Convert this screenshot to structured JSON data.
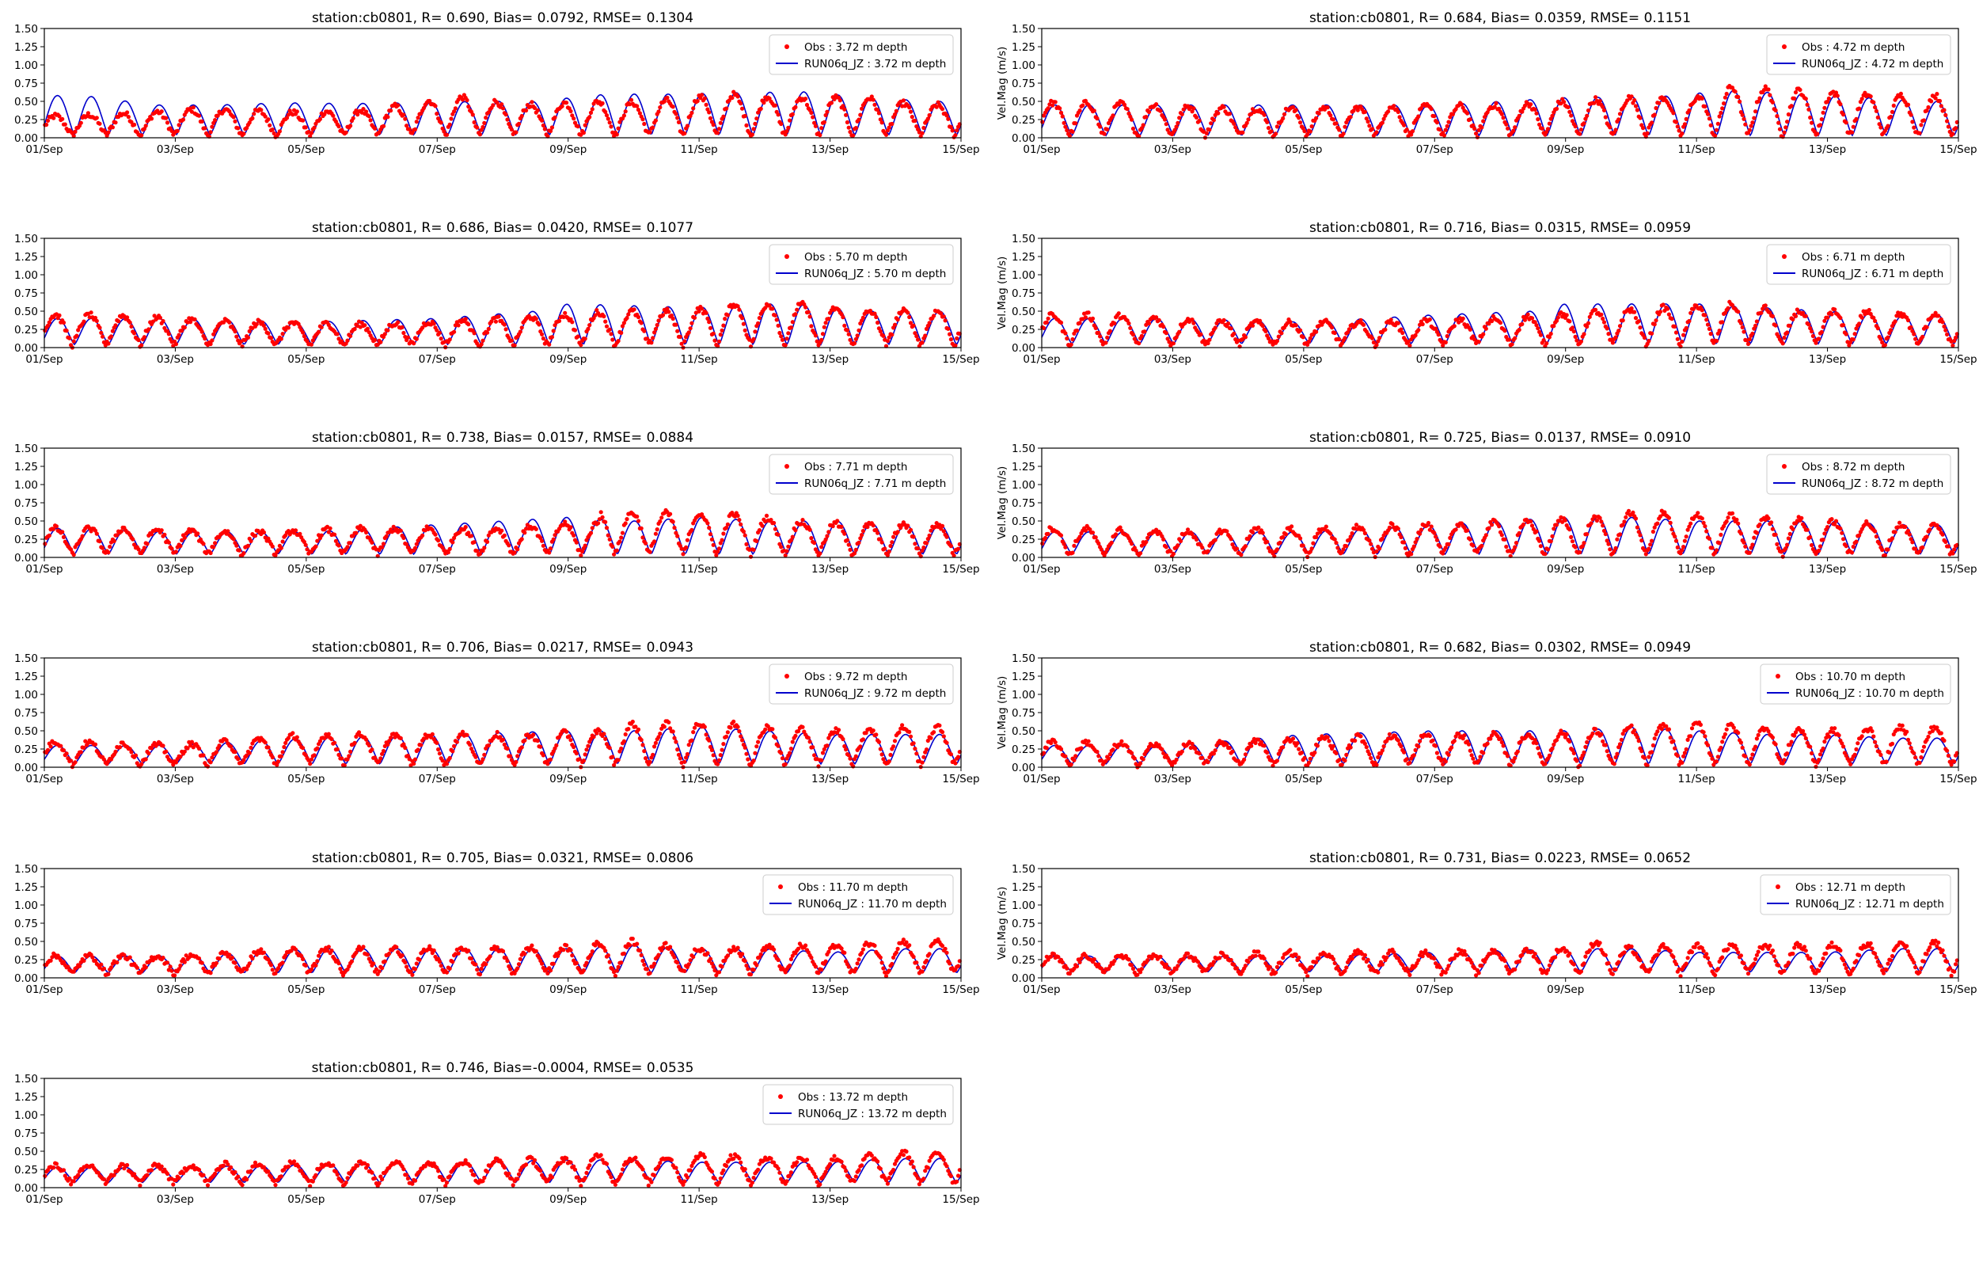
{
  "figure": {
    "x_ticks": [
      "01/Sep",
      "03/Sep",
      "05/Sep",
      "07/Sep",
      "09/Sep",
      "11/Sep",
      "13/Sep",
      "15/Sep"
    ],
    "y_ticks": [
      "0.00",
      "0.25",
      "0.50",
      "0.75",
      "1.00",
      "1.25",
      "1.50"
    ],
    "colors": {
      "obs": "#ff0000",
      "model": "#0000cc",
      "axis": "#000000"
    }
  },
  "chart_data": [
    {
      "type": "line",
      "title": "station:cb0801, R= 0.690, Bias= 0.0792, RMSE= 0.1304",
      "xlabel": "",
      "ylabel": "",
      "xlim": [
        0,
        14
      ],
      "ylim": [
        0,
        1.5
      ],
      "grid": false,
      "legend_position": "upper right",
      "series": [
        {
          "name": "Obs : 3.72 m depth",
          "marker": "dot",
          "color": "#ff0000",
          "mean": 0.19,
          "amp": 0.14,
          "peak_days": [
            0.3,
            1.6,
            2.4,
            3.8,
            5.0,
            6.3,
            7.3,
            8.4,
            9.1,
            10.4,
            11.3,
            12.6,
            13.3
          ],
          "peak_values": [
            0.3,
            0.35,
            0.4,
            0.35,
            0.38,
            0.57,
            0.45,
            0.5,
            0.48,
            0.6,
            0.55,
            0.55,
            0.45
          ]
        },
        {
          "name": "RUN06q_JZ : 3.72 m depth",
          "marker": "line",
          "color": "#0000cc",
          "mean": 0.26,
          "amp": 0.2,
          "peak_days": [
            0.6,
            1.7,
            2.6,
            3.7,
            4.7,
            5.6,
            6.6,
            7.5,
            8.6,
            9.6,
            10.6,
            11.6,
            12.6,
            13.6
          ],
          "peak_values": [
            0.58,
            0.45,
            0.45,
            0.48,
            0.47,
            0.48,
            0.5,
            0.5,
            0.6,
            0.6,
            0.62,
            0.63,
            0.55,
            0.5
          ]
        }
      ]
    },
    {
      "type": "line",
      "title": "station:cb0801, R= 0.684, Bias= 0.0359, RMSE= 0.1151",
      "xlabel": "",
      "ylabel": "Vel.Mag (m/s)",
      "xlim": [
        0,
        14
      ],
      "ylim": [
        0,
        1.5
      ],
      "grid": false,
      "legend_position": "upper right",
      "series": [
        {
          "name": "Obs : 4.72 m depth",
          "marker": "dot",
          "color": "#ff0000",
          "mean": 0.22,
          "amp": 0.17,
          "peak_days": [
            1.0,
            3.0,
            5.0,
            7.0,
            9.0,
            10.0,
            10.5,
            11.6,
            12.4,
            13.2
          ],
          "peak_values": [
            0.48,
            0.4,
            0.42,
            0.45,
            0.55,
            0.55,
            0.7,
            0.65,
            0.6,
            0.58
          ]
        },
        {
          "name": "RUN06q_JZ : 4.72 m depth",
          "marker": "line",
          "color": "#0000cc",
          "mean": 0.25,
          "amp": 0.2,
          "peak_days": [
            0.5,
            2.0,
            4.0,
            6.0,
            8.0,
            9.5,
            10.5,
            11.6,
            12.6,
            13.6
          ],
          "peak_values": [
            0.45,
            0.45,
            0.45,
            0.45,
            0.55,
            0.57,
            0.65,
            0.6,
            0.55,
            0.5
          ]
        }
      ]
    },
    {
      "type": "line",
      "title": "station:cb0801, R= 0.686, Bias= 0.0420, RMSE= 0.1077",
      "xlabel": "",
      "ylabel": "",
      "xlim": [
        0,
        14
      ],
      "ylim": [
        0,
        1.5
      ],
      "grid": false,
      "legend_position": "upper right",
      "series": [
        {
          "name": "Obs : 5.70 m depth",
          "marker": "dot",
          "color": "#ff0000",
          "mean": 0.2,
          "amp": 0.15,
          "peak_days": [
            1.0,
            3.0,
            5.0,
            7.0,
            8.7,
            9.8,
            10.5,
            11.5,
            12.5,
            13.4
          ],
          "peak_values": [
            0.45,
            0.35,
            0.32,
            0.4,
            0.5,
            0.5,
            0.6,
            0.6,
            0.5,
            0.5
          ]
        },
        {
          "name": "RUN06q_JZ : 5.70 m depth",
          "marker": "line",
          "color": "#0000cc",
          "mean": 0.24,
          "amp": 0.18,
          "peak_days": [
            0.5,
            2.0,
            4.0,
            6.0,
            7.5,
            8.0,
            10.0,
            11.0,
            11.5,
            12.5
          ],
          "peak_values": [
            0.4,
            0.4,
            0.35,
            0.4,
            0.5,
            0.6,
            0.55,
            0.6,
            0.6,
            0.5
          ]
        }
      ]
    },
    {
      "type": "line",
      "title": "station:cb0801, R= 0.716, Bias= 0.0315, RMSE= 0.0959",
      "xlabel": "",
      "ylabel": "Vel.Mag (m/s)",
      "xlim": [
        0,
        14
      ],
      "ylim": [
        0,
        1.5
      ],
      "grid": false,
      "legend_position": "upper right",
      "series": [
        {
          "name": "Obs : 6.71 m depth",
          "marker": "dot",
          "color": "#ff0000",
          "mean": 0.21,
          "amp": 0.15,
          "peak_days": [
            1.0,
            3.0,
            5.0,
            7.0,
            8.5,
            9.5,
            10.5,
            11.5,
            12.5,
            13.3
          ],
          "peak_values": [
            0.45,
            0.35,
            0.35,
            0.4,
            0.5,
            0.55,
            0.6,
            0.5,
            0.5,
            0.45
          ]
        },
        {
          "name": "RUN06q_JZ : 6.71 m depth",
          "marker": "line",
          "color": "#0000cc",
          "mean": 0.24,
          "amp": 0.17,
          "peak_days": [
            0.5,
            2.0,
            4.0,
            6.0,
            7.5,
            8.0,
            10.0,
            11.0,
            12.0,
            13.0
          ],
          "peak_values": [
            0.4,
            0.4,
            0.35,
            0.45,
            0.5,
            0.6,
            0.6,
            0.55,
            0.5,
            0.45
          ]
        }
      ]
    },
    {
      "type": "line",
      "title": "station:cb0801, R= 0.738, Bias= 0.0157, RMSE= 0.0884",
      "xlabel": "",
      "ylabel": "",
      "xlim": [
        0,
        14
      ],
      "ylim": [
        0,
        1.5
      ],
      "grid": false,
      "legend_position": "upper right",
      "series": [
        {
          "name": "Obs : 7.71 m depth",
          "marker": "dot",
          "color": "#ff0000",
          "mean": 0.2,
          "amp": 0.14,
          "peak_days": [
            1.0,
            3.0,
            5.0,
            7.0,
            8.5,
            8.5,
            10.5,
            11.5,
            12.5,
            13.5
          ],
          "peak_values": [
            0.4,
            0.35,
            0.4,
            0.4,
            0.5,
            0.62,
            0.6,
            0.5,
            0.45,
            0.45
          ]
        },
        {
          "name": "RUN06q_JZ : 7.71 m depth",
          "marker": "line",
          "color": "#0000cc",
          "mean": 0.22,
          "amp": 0.16,
          "peak_days": [
            0.5,
            2.0,
            4.0,
            6.0,
            8.0,
            9.0,
            10.0,
            11.0,
            12.0,
            13.0
          ],
          "peak_values": [
            0.4,
            0.35,
            0.35,
            0.45,
            0.55,
            0.5,
            0.55,
            0.5,
            0.5,
            0.45
          ]
        }
      ]
    },
    {
      "type": "line",
      "title": "station:cb0801, R= 0.725, Bias= 0.0137, RMSE= 0.0910",
      "xlabel": "",
      "ylabel": "Vel.Mag (m/s)",
      "xlim": [
        0,
        14
      ],
      "ylim": [
        0,
        1.5
      ],
      "grid": false,
      "legend_position": "upper right",
      "series": [
        {
          "name": "Obs : 8.72 m depth",
          "marker": "dot",
          "color": "#ff0000",
          "mean": 0.19,
          "amp": 0.14,
          "peak_days": [
            0.5,
            2.0,
            4.0,
            6.0,
            7.5,
            8.5,
            9.0,
            10.0,
            12.0,
            13.0
          ],
          "peak_values": [
            0.4,
            0.35,
            0.4,
            0.45,
            0.5,
            0.55,
            0.62,
            0.6,
            0.5,
            0.45
          ]
        },
        {
          "name": "RUN06q_JZ : 8.72 m depth",
          "marker": "line",
          "color": "#0000cc",
          "mean": 0.22,
          "amp": 0.16,
          "peak_days": [
            0.5,
            2.0,
            4.0,
            6.0,
            8.0,
            9.0,
            10.0,
            11.0,
            12.0,
            13.0
          ],
          "peak_values": [
            0.35,
            0.35,
            0.35,
            0.45,
            0.55,
            0.55,
            0.5,
            0.5,
            0.5,
            0.45
          ]
        }
      ]
    },
    {
      "type": "line",
      "title": "station:cb0801, R= 0.706, Bias= 0.0217, RMSE= 0.0943",
      "xlabel": "",
      "ylabel": "",
      "xlim": [
        0,
        14
      ],
      "ylim": [
        0,
        1.5
      ],
      "grid": false,
      "legend_position": "upper right",
      "series": [
        {
          "name": "Obs : 9.72 m depth",
          "marker": "dot",
          "color": "#ff0000",
          "mean": 0.19,
          "amp": 0.14,
          "peak_days": [
            0.5,
            2.0,
            4.0,
            6.0,
            7.5,
            8.5,
            9.0,
            10.5,
            12.0,
            13.0
          ],
          "peak_values": [
            0.35,
            0.3,
            0.45,
            0.45,
            0.45,
            0.5,
            0.6,
            0.6,
            0.5,
            0.55
          ]
        },
        {
          "name": "RUN06q_JZ : 9.72 m depth",
          "marker": "line",
          "color": "#0000cc",
          "mean": 0.21,
          "amp": 0.15,
          "peak_days": [
            0.5,
            2.0,
            4.0,
            6.0,
            8.0,
            9.0,
            10.0,
            11.0,
            12.0,
            13.0
          ],
          "peak_values": [
            0.3,
            0.3,
            0.4,
            0.45,
            0.5,
            0.5,
            0.55,
            0.5,
            0.45,
            0.45
          ]
        }
      ]
    },
    {
      "type": "line",
      "title": "station:cb0801, R= 0.682, Bias= 0.0302, RMSE= 0.0949",
      "xlabel": "",
      "ylabel": "Vel.Mag (m/s)",
      "xlim": [
        0,
        14
      ],
      "ylim": [
        0,
        1.5
      ],
      "grid": false,
      "legend_position": "upper right",
      "series": [
        {
          "name": "Obs : 10.70 m depth",
          "marker": "dot",
          "color": "#ff0000",
          "mean": 0.19,
          "amp": 0.14,
          "peak_days": [
            0.5,
            2.0,
            4.0,
            6.0,
            7.5,
            8.5,
            9.0,
            10.0,
            12.0,
            13.0
          ],
          "peak_values": [
            0.35,
            0.3,
            0.4,
            0.45,
            0.45,
            0.5,
            0.55,
            0.6,
            0.5,
            0.55
          ]
        },
        {
          "name": "RUN06q_JZ : 10.70 m depth",
          "marker": "line",
          "color": "#0000cc",
          "mean": 0.21,
          "amp": 0.15,
          "peak_days": [
            0.5,
            2.0,
            4.0,
            6.0,
            8.0,
            9.0,
            10.0,
            11.0,
            12.0,
            13.0
          ],
          "peak_values": [
            0.3,
            0.3,
            0.45,
            0.5,
            0.5,
            0.55,
            0.5,
            0.45,
            0.45,
            0.4
          ]
        }
      ]
    },
    {
      "type": "line",
      "title": "station:cb0801, R= 0.705, Bias= 0.0321, RMSE= 0.0806",
      "xlabel": "",
      "ylabel": "",
      "xlim": [
        0,
        14
      ],
      "ylim": [
        0,
        1.5
      ],
      "grid": false,
      "legend_position": "upper right",
      "series": [
        {
          "name": "Obs : 11.70 m depth",
          "marker": "dot",
          "color": "#ff0000",
          "mean": 0.18,
          "amp": 0.11,
          "peak_days": [
            0.5,
            2.0,
            4.0,
            6.0,
            8.0,
            8.5,
            9.0,
            10.0,
            12.0,
            13.0
          ],
          "peak_values": [
            0.3,
            0.3,
            0.4,
            0.4,
            0.42,
            0.48,
            0.5,
            0.4,
            0.45,
            0.5
          ]
        },
        {
          "name": "RUN06q_JZ : 11.70 m depth",
          "marker": "line",
          "color": "#0000cc",
          "mean": 0.2,
          "amp": 0.12,
          "peak_days": [
            0.5,
            2.0,
            4.0,
            6.0,
            8.0,
            9.0,
            10.0,
            11.0,
            12.0,
            13.0
          ],
          "peak_values": [
            0.3,
            0.3,
            0.4,
            0.4,
            0.4,
            0.45,
            0.4,
            0.4,
            0.35,
            0.4
          ]
        }
      ]
    },
    {
      "type": "line",
      "title": "station:cb0801, R= 0.731, Bias= 0.0223, RMSE= 0.0652",
      "xlabel": "",
      "ylabel": "Vel.Mag (m/s)",
      "xlim": [
        0,
        14
      ],
      "ylim": [
        0,
        1.5
      ],
      "grid": false,
      "legend_position": "upper right",
      "series": [
        {
          "name": "Obs : 12.71 m depth",
          "marker": "dot",
          "color": "#ff0000",
          "mean": 0.17,
          "amp": 0.1,
          "peak_days": [
            0.5,
            2.0,
            4.0,
            6.0,
            8.0,
            8.5,
            9.0,
            10.0,
            12.0,
            13.0
          ],
          "peak_values": [
            0.3,
            0.3,
            0.35,
            0.35,
            0.4,
            0.5,
            0.4,
            0.45,
            0.45,
            0.48
          ]
        },
        {
          "name": "RUN06q_JZ : 12.71 m depth",
          "marker": "line",
          "color": "#0000cc",
          "mean": 0.19,
          "amp": 0.1,
          "peak_days": [
            0.5,
            2.0,
            4.0,
            6.0,
            8.0,
            9.0,
            10.0,
            11.0,
            12.0,
            13.0
          ],
          "peak_values": [
            0.3,
            0.3,
            0.3,
            0.35,
            0.4,
            0.4,
            0.35,
            0.35,
            0.35,
            0.4
          ]
        }
      ]
    },
    {
      "type": "line",
      "title": "station:cb0801, R= 0.746, Bias=-0.0004, RMSE= 0.0535",
      "xlabel": "",
      "ylabel": "",
      "xlim": [
        0,
        14
      ],
      "ylim": [
        0,
        1.5
      ],
      "grid": false,
      "legend_position": "upper right",
      "series": [
        {
          "name": "Obs : 13.72 m depth",
          "marker": "dot",
          "color": "#ff0000",
          "mean": 0.17,
          "amp": 0.1,
          "peak_days": [
            0.5,
            2.0,
            4.0,
            6.0,
            8.0,
            8.5,
            9.0,
            10.0,
            12.0,
            13.0
          ],
          "peak_values": [
            0.3,
            0.3,
            0.35,
            0.35,
            0.4,
            0.45,
            0.4,
            0.45,
            0.4,
            0.48
          ]
        },
        {
          "name": "RUN06q_JZ : 13.72 m depth",
          "marker": "line",
          "color": "#0000cc",
          "mean": 0.18,
          "amp": 0.1,
          "peak_days": [
            0.5,
            2.0,
            4.0,
            6.0,
            8.0,
            9.0,
            10.0,
            11.0,
            12.0,
            13.0
          ],
          "peak_values": [
            0.28,
            0.28,
            0.32,
            0.35,
            0.38,
            0.38,
            0.35,
            0.35,
            0.35,
            0.4
          ]
        }
      ]
    }
  ]
}
